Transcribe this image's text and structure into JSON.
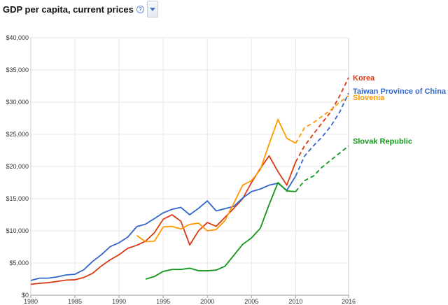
{
  "header": {
    "title": "GDP per capita, current prices",
    "help_icon": "question-circle-icon",
    "dropdown_icon": "chevron-down-icon"
  },
  "chart_data": {
    "type": "line",
    "title": "GDP per capita, current prices",
    "xlabel": "",
    "ylabel": "",
    "xlim": [
      1980,
      2016
    ],
    "ylim": [
      0,
      40000
    ],
    "x_ticks": [
      1980,
      1985,
      1990,
      1995,
      2000,
      2005,
      2010,
      2016
    ],
    "y_ticks": [
      0,
      5000,
      10000,
      15000,
      20000,
      25000,
      30000,
      35000,
      40000
    ],
    "y_tick_labels": [
      "$0",
      "$5,000",
      "$10,000",
      "$15,000",
      "$20,000",
      "$25,000",
      "$30,000",
      "$35,000",
      "$40,000"
    ],
    "grid": true,
    "legend": "labels at right end of lines",
    "projection_start": 2010,
    "projection_style": "dashed",
    "series": [
      {
        "name": "Korea",
        "color": "#dc3912",
        "x": [
          1980,
          1981,
          1982,
          1983,
          1984,
          1985,
          1986,
          1987,
          1988,
          1989,
          1990,
          1991,
          1992,
          1993,
          1994,
          1995,
          1996,
          1997,
          1998,
          1999,
          2000,
          2001,
          2002,
          2003,
          2004,
          2005,
          2006,
          2007,
          2008,
          2009,
          2010,
          2011,
          2012,
          2013,
          2014,
          2015,
          2016
        ],
        "values": [
          1700,
          1850,
          1950,
          2150,
          2350,
          2400,
          2750,
          3400,
          4550,
          5500,
          6300,
          7300,
          7750,
          8400,
          9700,
          11800,
          12500,
          11500,
          7800,
          10000,
          11300,
          10700,
          12100,
          13500,
          15000,
          17500,
          19700,
          21650,
          19200,
          17100,
          20700,
          23200,
          25000,
          26800,
          28500,
          31000,
          33800
        ]
      },
      {
        "name": "Taiwan Province of China",
        "color": "#3366cc",
        "x": [
          1980,
          1981,
          1982,
          1983,
          1984,
          1985,
          1986,
          1987,
          1988,
          1989,
          1990,
          1991,
          1992,
          1993,
          1994,
          1995,
          1996,
          1997,
          1998,
          1999,
          2000,
          2001,
          2002,
          2003,
          2004,
          2005,
          2006,
          2007,
          2008,
          2009,
          2010,
          2011,
          2012,
          2013,
          2014,
          2015,
          2016
        ],
        "values": [
          2300,
          2650,
          2650,
          2850,
          3150,
          3250,
          3950,
          5250,
          6300,
          7550,
          8150,
          9050,
          10650,
          11050,
          11900,
          12800,
          13350,
          13650,
          12500,
          13500,
          14650,
          13100,
          13450,
          13800,
          15100,
          16100,
          16500,
          17100,
          17400,
          16300,
          18500,
          21600,
          23200,
          24600,
          26300,
          28500,
          31400
        ]
      },
      {
        "name": "Slovenia",
        "color": "#ff9900",
        "x": [
          1992,
          1993,
          1994,
          1995,
          1996,
          1997,
          1998,
          1999,
          2000,
          2001,
          2002,
          2003,
          2004,
          2005,
          2006,
          2007,
          2008,
          2009,
          2010,
          2011,
          2012,
          2013,
          2014,
          2015,
          2016
        ],
        "values": [
          9300,
          8300,
          8400,
          10600,
          10700,
          10300,
          11000,
          11200,
          10000,
          10200,
          11600,
          14300,
          17100,
          17800,
          19500,
          23500,
          27300,
          24400,
          23600,
          26000,
          26800,
          27800,
          28800,
          30000,
          31000
        ]
      },
      {
        "name": "Slovak Republic",
        "color": "#109618",
        "x": [
          1993,
          1994,
          1995,
          1996,
          1997,
          1998,
          1999,
          2000,
          2001,
          2002,
          2003,
          2004,
          2005,
          2006,
          2007,
          2008,
          2009,
          2010,
          2011,
          2012,
          2013,
          2014,
          2015,
          2016
        ],
        "values": [
          2500,
          2900,
          3700,
          4000,
          4000,
          4200,
          3800,
          3800,
          3900,
          4500,
          6200,
          7900,
          8900,
          10400,
          14100,
          17500,
          16200,
          16100,
          17800,
          18500,
          19900,
          21000,
          22100,
          23200
        ]
      }
    ]
  }
}
